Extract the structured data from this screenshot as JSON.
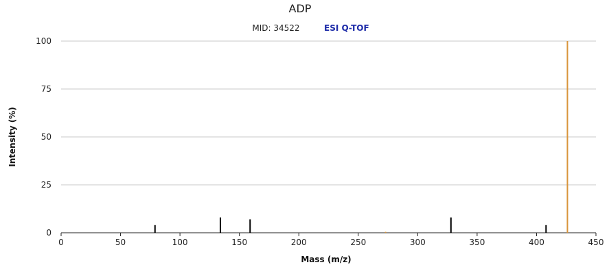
{
  "chart_data": {
    "type": "bar",
    "title": "ADP",
    "subtitle": "MID: 34522",
    "instrument": "ESI Q-TOF",
    "xlabel": "Mass (m/z)",
    "ylabel": "Intensity (%)",
    "xlim": [
      0,
      450
    ],
    "ylim": [
      0,
      100
    ],
    "xticks": [
      0,
      50,
      100,
      150,
      200,
      250,
      300,
      350,
      400,
      450
    ],
    "yticks": [
      0,
      25,
      50,
      75,
      100
    ],
    "grid": "horizontal",
    "series": [
      {
        "color": "#000000",
        "peaks": [
          {
            "mz": 79,
            "intensity": 4
          },
          {
            "mz": 134,
            "intensity": 8
          },
          {
            "mz": 159,
            "intensity": 7
          },
          {
            "mz": 328,
            "intensity": 8
          },
          {
            "mz": 408,
            "intensity": 4
          }
        ]
      },
      {
        "color": "#d9943a",
        "peaks": [
          {
            "mz": 273,
            "intensity": 0.5
          },
          {
            "mz": 426,
            "intensity": 100
          }
        ]
      }
    ]
  }
}
